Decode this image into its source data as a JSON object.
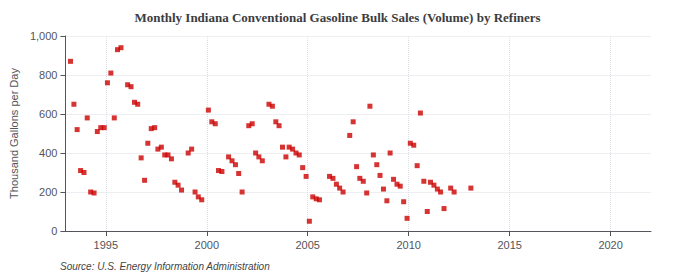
{
  "chart_data": {
    "type": "scatter",
    "title": "Monthly Indiana Conventional Gasoline Bulk Sales (Volume) by Refiners",
    "ylabel": "Thousand Gallons per Day",
    "annotation": "Source: U.S. Energy Information Administration",
    "color": "#cc0000",
    "marker": "square",
    "grid": true,
    "xlim": [
      1993.0,
      2022.0
    ],
    "ylim": [
      0,
      1000
    ],
    "xticks": [
      1995,
      2000,
      2005,
      2010,
      2015,
      2020
    ],
    "yticks": [
      0,
      200,
      400,
      600,
      800,
      {
        "value": 1000,
        "label": "1,000"
      }
    ],
    "x": [
      1993.25,
      1993.42,
      1993.58,
      1993.75,
      1993.92,
      1994.08,
      1994.25,
      1994.42,
      1994.58,
      1994.75,
      1994.92,
      1995.08,
      1995.25,
      1995.42,
      1995.58,
      1995.75,
      1996.08,
      1996.25,
      1996.42,
      1996.58,
      1996.75,
      1996.92,
      1997.08,
      1997.25,
      1997.42,
      1997.58,
      1997.75,
      1997.92,
      1998.08,
      1998.25,
      1998.42,
      1998.58,
      1998.75,
      1999.08,
      1999.25,
      1999.42,
      1999.58,
      1999.75,
      2000.08,
      2000.25,
      2000.42,
      2000.58,
      2000.75,
      2001.08,
      2001.25,
      2001.42,
      2001.58,
      2001.75,
      2002.08,
      2002.25,
      2002.42,
      2002.58,
      2002.75,
      2003.08,
      2003.25,
      2003.42,
      2003.58,
      2003.75,
      2003.92,
      2004.08,
      2004.25,
      2004.42,
      2004.58,
      2004.75,
      2004.92,
      2005.08,
      2005.25,
      2005.42,
      2005.58,
      2006.08,
      2006.25,
      2006.42,
      2006.58,
      2006.75,
      2007.08,
      2007.25,
      2007.42,
      2007.58,
      2007.75,
      2007.92,
      2008.08,
      2008.25,
      2008.42,
      2008.58,
      2008.75,
      2008.92,
      2009.08,
      2009.25,
      2009.42,
      2009.58,
      2009.75,
      2009.92,
      2010.08,
      2010.25,
      2010.42,
      2010.58,
      2010.75,
      2010.92,
      2011.08,
      2011.25,
      2011.42,
      2011.58,
      2011.75,
      2012.08,
      2012.25,
      2013.08
    ],
    "values": [
      870,
      650,
      520,
      310,
      300,
      580,
      200,
      195,
      510,
      530,
      530,
      760,
      810,
      580,
      930,
      940,
      750,
      740,
      660,
      650,
      375,
      260,
      450,
      525,
      530,
      420,
      430,
      390,
      390,
      370,
      250,
      235,
      210,
      400,
      420,
      200,
      175,
      160,
      620,
      560,
      550,
      310,
      305,
      380,
      360,
      340,
      295,
      200,
      540,
      550,
      400,
      380,
      360,
      650,
      640,
      560,
      540,
      430,
      380,
      430,
      420,
      400,
      390,
      325,
      280,
      50,
      175,
      165,
      160,
      280,
      270,
      240,
      220,
      200,
      490,
      560,
      330,
      270,
      255,
      195,
      640,
      390,
      340,
      285,
      215,
      155,
      400,
      265,
      240,
      230,
      150,
      65,
      450,
      440,
      335,
      605,
      255,
      100,
      250,
      235,
      215,
      200,
      115,
      220,
      200,
      220
    ]
  }
}
